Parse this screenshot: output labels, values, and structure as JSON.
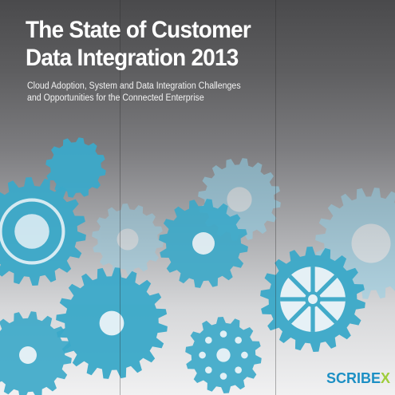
{
  "cover": {
    "title_line1": "The State of Customer",
    "title_line2": "Data Integration 2013",
    "subtitle_line1": "Cloud Adoption, System and Data Integration Challenges",
    "subtitle_line2": "and Opportunities for the Connected Enterprise"
  },
  "logo": {
    "word": "SCRIBE",
    "mark": "X"
  },
  "colors": {
    "gear_teal": "#3ba9c9",
    "gear_light": "#8fd0e8",
    "logo_blue": "#1c8fc4",
    "logo_green": "#9fcd3a"
  }
}
